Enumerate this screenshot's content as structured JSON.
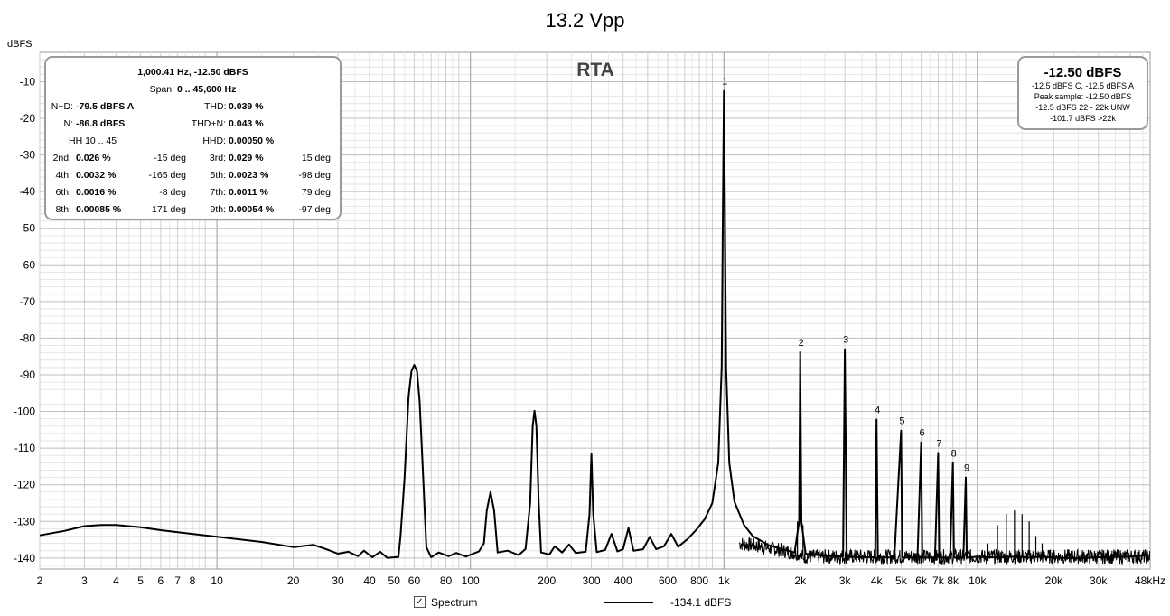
{
  "title": "13.2 Vpp",
  "chart_data": {
    "type": "line",
    "title": "13.2 Vpp",
    "subtitle": "RTA",
    "ylabel": "dBFS",
    "xlabel": "",
    "x_scale": "log",
    "xlim": [
      2,
      48000
    ],
    "ylim": [
      -143,
      -2
    ],
    "grid": true,
    "x_ticks": [
      {
        "v": 2,
        "l": "2"
      },
      {
        "v": 3,
        "l": "3"
      },
      {
        "v": 4,
        "l": "4"
      },
      {
        "v": 5,
        "l": "5"
      },
      {
        "v": 6,
        "l": "6"
      },
      {
        "v": 7,
        "l": "7"
      },
      {
        "v": 8,
        "l": "8"
      },
      {
        "v": 10,
        "l": "10"
      },
      {
        "v": 20,
        "l": "20"
      },
      {
        "v": 30,
        "l": "30"
      },
      {
        "v": 40,
        "l": "40"
      },
      {
        "v": 50,
        "l": "50"
      },
      {
        "v": 60,
        "l": "60"
      },
      {
        "v": 80,
        "l": "80"
      },
      {
        "v": 100,
        "l": "100"
      },
      {
        "v": 200,
        "l": "200"
      },
      {
        "v": 300,
        "l": "300"
      },
      {
        "v": 400,
        "l": "400"
      },
      {
        "v": 600,
        "l": "600"
      },
      {
        "v": 800,
        "l": "800"
      },
      {
        "v": 1000,
        "l": "1k"
      },
      {
        "v": 2000,
        "l": "2k"
      },
      {
        "v": 3000,
        "l": "3k"
      },
      {
        "v": 4000,
        "l": "4k"
      },
      {
        "v": 5000,
        "l": "5k"
      },
      {
        "v": 6000,
        "l": "6k"
      },
      {
        "v": 7000,
        "l": "7k"
      },
      {
        "v": 8000,
        "l": "8k"
      },
      {
        "v": 10000,
        "l": "10k"
      },
      {
        "v": 20000,
        "l": "20k"
      },
      {
        "v": 30000,
        "l": "30k"
      },
      {
        "v": 48000,
        "l": "48kHz"
      }
    ],
    "y_ticks": [
      -10,
      -20,
      -30,
      -40,
      -50,
      -60,
      -70,
      -80,
      -90,
      -100,
      -110,
      -120,
      -130,
      -140
    ],
    "series": [
      {
        "name": "Spectrum",
        "color": "#000000",
        "points": [
          [
            2,
            -133.8
          ],
          [
            2.5,
            -132.6
          ],
          [
            3,
            -131.3
          ],
          [
            3.5,
            -131.0
          ],
          [
            4,
            -131.0
          ],
          [
            5,
            -131.6
          ],
          [
            6,
            -132.4
          ],
          [
            8,
            -133.4
          ],
          [
            10,
            -134.2
          ],
          [
            15,
            -135.6
          ],
          [
            20,
            -137.0
          ],
          [
            24,
            -136.4
          ],
          [
            27,
            -137.6
          ],
          [
            30,
            -138.8
          ],
          [
            33,
            -138.3
          ],
          [
            36,
            -139.5
          ],
          [
            38,
            -138.0
          ],
          [
            41,
            -139.8
          ],
          [
            44,
            -138.3
          ],
          [
            47,
            -140.0
          ],
          [
            52,
            -139.7
          ],
          [
            53,
            -134
          ],
          [
            55,
            -118
          ],
          [
            57,
            -96
          ],
          [
            58.5,
            -89
          ],
          [
            60,
            -87.3
          ],
          [
            61.5,
            -89
          ],
          [
            63,
            -97
          ],
          [
            65,
            -117
          ],
          [
            67,
            -137
          ],
          [
            70,
            -139.8
          ],
          [
            75,
            -138.5
          ],
          [
            82,
            -139.5
          ],
          [
            88,
            -138.6
          ],
          [
            96,
            -139.6
          ],
          [
            108,
            -138.2
          ],
          [
            113,
            -136
          ],
          [
            116,
            -127
          ],
          [
            120,
            -122.0
          ],
          [
            124,
            -127
          ],
          [
            128,
            -138.5
          ],
          [
            140,
            -138.0
          ],
          [
            155,
            -139.2
          ],
          [
            165,
            -137.5
          ],
          [
            172,
            -125
          ],
          [
            176,
            -104
          ],
          [
            179,
            -99.8
          ],
          [
            182,
            -104
          ],
          [
            186,
            -125
          ],
          [
            190,
            -138.5
          ],
          [
            205,
            -139
          ],
          [
            215,
            -136.8
          ],
          [
            230,
            -138.5
          ],
          [
            245,
            -136.3
          ],
          [
            260,
            -138.6
          ],
          [
            285,
            -138.3
          ],
          [
            295,
            -128
          ],
          [
            300,
            -111.6
          ],
          [
            305,
            -128
          ],
          [
            315,
            -138.4
          ],
          [
            340,
            -137.8
          ],
          [
            360,
            -133.4
          ],
          [
            380,
            -138.2
          ],
          [
            400,
            -137.6
          ],
          [
            420,
            -131.8
          ],
          [
            440,
            -138.0
          ],
          [
            480,
            -137.6
          ],
          [
            510,
            -134.2
          ],
          [
            540,
            -137.6
          ],
          [
            580,
            -136.8
          ],
          [
            620,
            -133.4
          ],
          [
            660,
            -136.9
          ],
          [
            720,
            -134.8
          ],
          [
            780,
            -132.2
          ],
          [
            840,
            -129.4
          ],
          [
            900,
            -125
          ],
          [
            950,
            -114
          ],
          [
            980,
            -88
          ],
          [
            992,
            -40
          ],
          [
            1000,
            -12.5
          ],
          [
            1008,
            -40
          ],
          [
            1020,
            -88
          ],
          [
            1050,
            -114
          ],
          [
            1100,
            -124.6
          ],
          [
            1200,
            -131.0
          ],
          [
            1300,
            -134.0
          ],
          [
            1500,
            -136.5
          ],
          [
            1700,
            -137.6
          ],
          [
            1900,
            -138.5
          ],
          [
            1980,
            -130
          ],
          [
            2000,
            -83.8
          ],
          [
            2020,
            -130
          ],
          [
            2100,
            -138.8
          ],
          [
            2500,
            -139.4
          ],
          [
            2950,
            -139.6
          ],
          [
            3000,
            -83.0
          ],
          [
            3050,
            -139.6
          ],
          [
            3500,
            -139.8
          ],
          [
            3950,
            -139.8
          ],
          [
            4000,
            -102.2
          ],
          [
            4050,
            -139.8
          ],
          [
            4700,
            -139.9
          ],
          [
            5000,
            -105.2
          ],
          [
            5050,
            -139.9
          ],
          [
            5800,
            -139.9
          ],
          [
            6000,
            -108.4
          ],
          [
            6060,
            -139.9
          ],
          [
            6800,
            -139.9
          ],
          [
            7000,
            -111.3
          ],
          [
            7070,
            -139.9
          ],
          [
            7800,
            -139.9
          ],
          [
            8000,
            -114.0
          ],
          [
            8080,
            -139.9
          ],
          [
            8800,
            -139.9
          ],
          [
            9000,
            -118.0
          ],
          [
            9080,
            -139.9
          ],
          [
            10000,
            -139.6
          ],
          [
            12000,
            -139.9
          ],
          [
            14000,
            -139.6
          ],
          [
            16000,
            -139.9
          ],
          [
            18000,
            -139.6
          ],
          [
            20000,
            -139.9
          ],
          [
            25000,
            -140.1
          ],
          [
            30000,
            -139.8
          ],
          [
            40000,
            -139.6
          ],
          [
            48000,
            -139.2
          ]
        ]
      }
    ],
    "peaks": [
      {
        "label": "1",
        "x": 1000,
        "y": -12.5
      },
      {
        "label": "2",
        "x": 2000,
        "y": -83.8
      },
      {
        "label": "3",
        "x": 3000,
        "y": -83.0
      },
      {
        "label": "4",
        "x": 4000,
        "y": -102.2
      },
      {
        "label": "5",
        "x": 5000,
        "y": -105.2
      },
      {
        "label": "6",
        "x": 6000,
        "y": -108.4
      },
      {
        "label": "7",
        "x": 7000,
        "y": -111.3
      },
      {
        "label": "8",
        "x": 8000,
        "y": -114.0
      },
      {
        "label": "9",
        "x": 9000,
        "y": -118.0
      }
    ],
    "spurs": [
      {
        "x": 1950,
        "y": -130
      },
      {
        "x": 2050,
        "y": -131
      },
      {
        "x": 11000,
        "y": -136
      },
      {
        "x": 12000,
        "y": -131
      },
      {
        "x": 13000,
        "y": -128
      },
      {
        "x": 14000,
        "y": -127
      },
      {
        "x": 15000,
        "y": -128
      },
      {
        "x": 16000,
        "y": -130
      },
      {
        "x": 17000,
        "y": -134
      },
      {
        "x": 18000,
        "y": -136
      }
    ],
    "legend": {
      "position": "bottom",
      "label": "Spectrum",
      "value": "-134.1 dBFS",
      "checked": true
    }
  },
  "stats_box": {
    "header": "1,000.41 Hz, -12.50 dBFS",
    "span_label": "Span:",
    "span_value": "0 .. 45,600 Hz",
    "nd_label": "N+D:",
    "nd_value": "-79.5 dBFS A",
    "thd_label": "THD:",
    "thd_value": "0.039 %",
    "n_label": "N:",
    "n_value": "-86.8 dBFS",
    "thdn_label": "THD+N:",
    "thdn_value": "0.043 %",
    "hh_label": "HH 10 .. 45",
    "hhd_label": "HHD:",
    "hhd_value": "0.00050 %",
    "harmonics": [
      {
        "l1": "2nd:",
        "v1": "0.026 %",
        "d1": "-15 deg",
        "l2": "3rd:",
        "v2": "0.029 %",
        "d2": "15 deg"
      },
      {
        "l1": "4th:",
        "v1": "0.0032 %",
        "d1": "-165 deg",
        "l2": "5th:",
        "v2": "0.0023 %",
        "d2": "-98 deg"
      },
      {
        "l1": "6th:",
        "v1": "0.0016 %",
        "d1": "-8 deg",
        "l2": "7th:",
        "v2": "0.0011 %",
        "d2": "79 deg"
      },
      {
        "l1": "8th:",
        "v1": "0.00085 %",
        "d1": "171 deg",
        "l2": "9th:",
        "v2": "0.00054 %",
        "d2": "-97 deg"
      }
    ]
  },
  "peak_box": {
    "main": "-12.50 dBFS",
    "line1": "-12.5 dBFS C, -12.5 dBFS A",
    "line2": "Peak sample: -12.50 dBFS",
    "line3": "-12.5 dBFS 22 - 22k UNW",
    "line4": "-101.7 dBFS >22k"
  }
}
